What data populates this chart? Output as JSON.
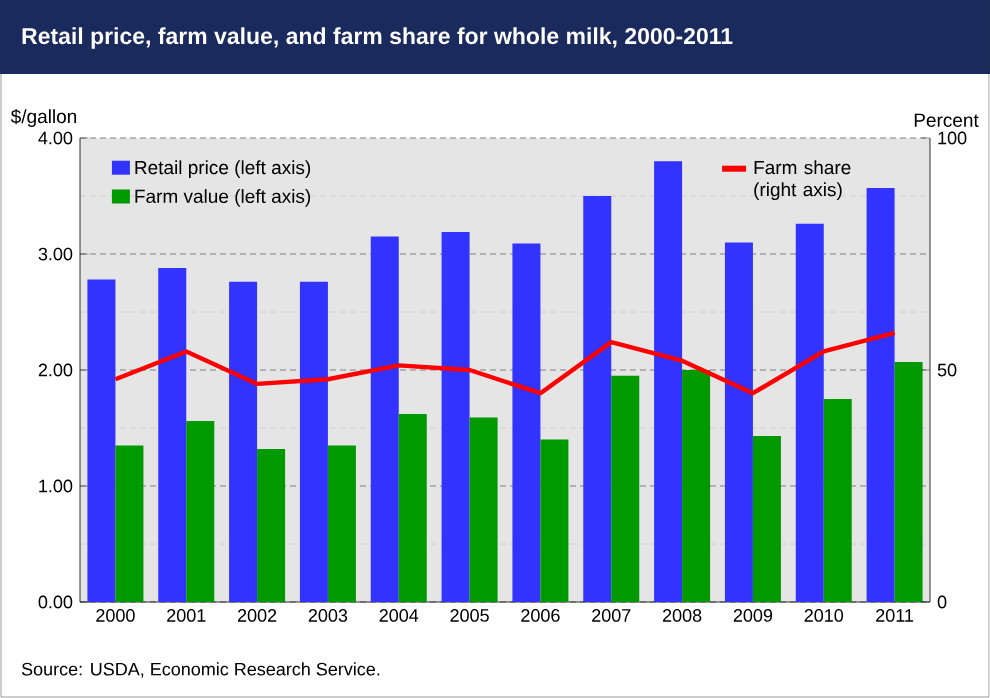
{
  "chart_data": {
    "type": "bar",
    "title": "Retail price, farm value, and farm share for whole milk, 2000-2011",
    "categories": [
      "2000",
      "2001",
      "2002",
      "2003",
      "2004",
      "2005",
      "2006",
      "2007",
      "2008",
      "2009",
      "2010",
      "2011"
    ],
    "series": [
      {
        "name": "Retail price (left axis)",
        "color": "#3333ff",
        "values": [
          2.78,
          2.88,
          2.76,
          2.76,
          3.15,
          3.19,
          3.09,
          3.5,
          3.8,
          3.1,
          3.26,
          3.57
        ]
      },
      {
        "name": "Farm value (left axis)",
        "color": "#009900",
        "values": [
          1.35,
          1.56,
          1.32,
          1.35,
          1.62,
          1.59,
          1.4,
          1.95,
          2.0,
          1.43,
          1.75,
          2.07
        ]
      },
      {
        "name": "Farm share (right axis)",
        "type": "line",
        "axis": "y2",
        "color": "#ff0000",
        "values": [
          48,
          54,
          47,
          48,
          51,
          50,
          45,
          56,
          52,
          45,
          54,
          58
        ]
      }
    ],
    "ylabel": "$/gallon",
    "y2label": "Percent",
    "ylim": [
      0,
      4
    ],
    "yticks": [
      {
        "value": 0,
        "label": "0.00"
      },
      {
        "value": 1,
        "label": "1.00"
      },
      {
        "value": 2,
        "label": "2.00"
      },
      {
        "value": 3,
        "label": "3.00"
      },
      {
        "value": 4,
        "label": "4.00"
      }
    ],
    "y2lim": [
      0,
      100
    ],
    "y2ticks": [
      0,
      50,
      100
    ],
    "grid": "y",
    "legend": "top left",
    "annotations": [
      "Source: USDA, Economic Research Service."
    ]
  }
}
